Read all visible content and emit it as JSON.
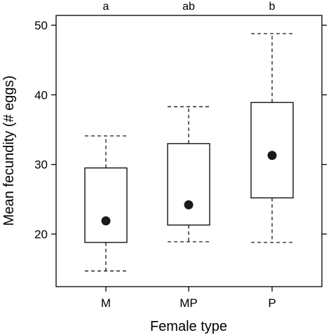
{
  "chart_data": {
    "type": "box",
    "title": "",
    "xlabel": "Female type",
    "ylabel": "Mean fecundity (# eggs)",
    "categories": [
      "M",
      "MP",
      "P"
    ],
    "significance_letters": [
      "a",
      "ab",
      "b"
    ],
    "ylim": [
      12,
      53
    ],
    "yticks": [
      20,
      30,
      40,
      50
    ],
    "grid": false,
    "boxes": [
      {
        "category": "M",
        "whisker_low": 14.7,
        "q1": 18.8,
        "median": 21.9,
        "q3": 29.5,
        "whisker_high": 34.1
      },
      {
        "category": "MP",
        "whisker_low": 18.9,
        "q1": 21.3,
        "median": 24.2,
        "q3": 33.0,
        "whisker_high": 38.3
      },
      {
        "category": "P",
        "whisker_low": 18.8,
        "q1": 25.2,
        "median": 31.3,
        "q3": 38.9,
        "whisker_high": 48.8
      }
    ]
  }
}
